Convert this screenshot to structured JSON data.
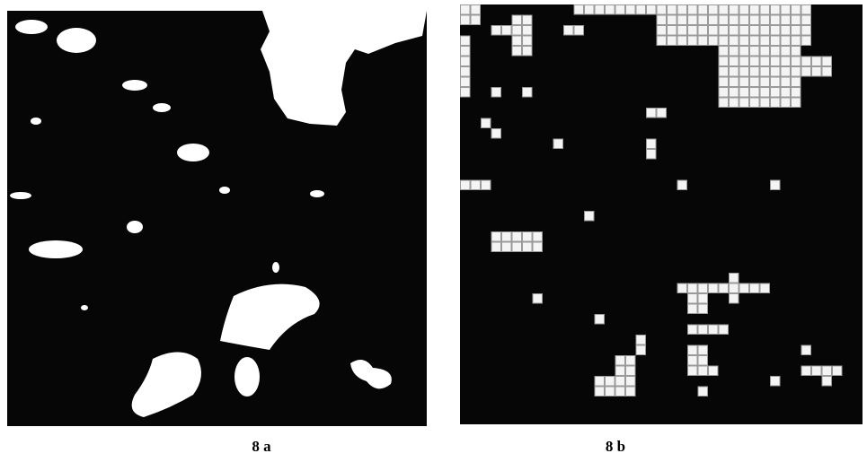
{
  "figures": [
    {
      "caption": "8 a"
    },
    {
      "caption": "8 b"
    }
  ]
}
